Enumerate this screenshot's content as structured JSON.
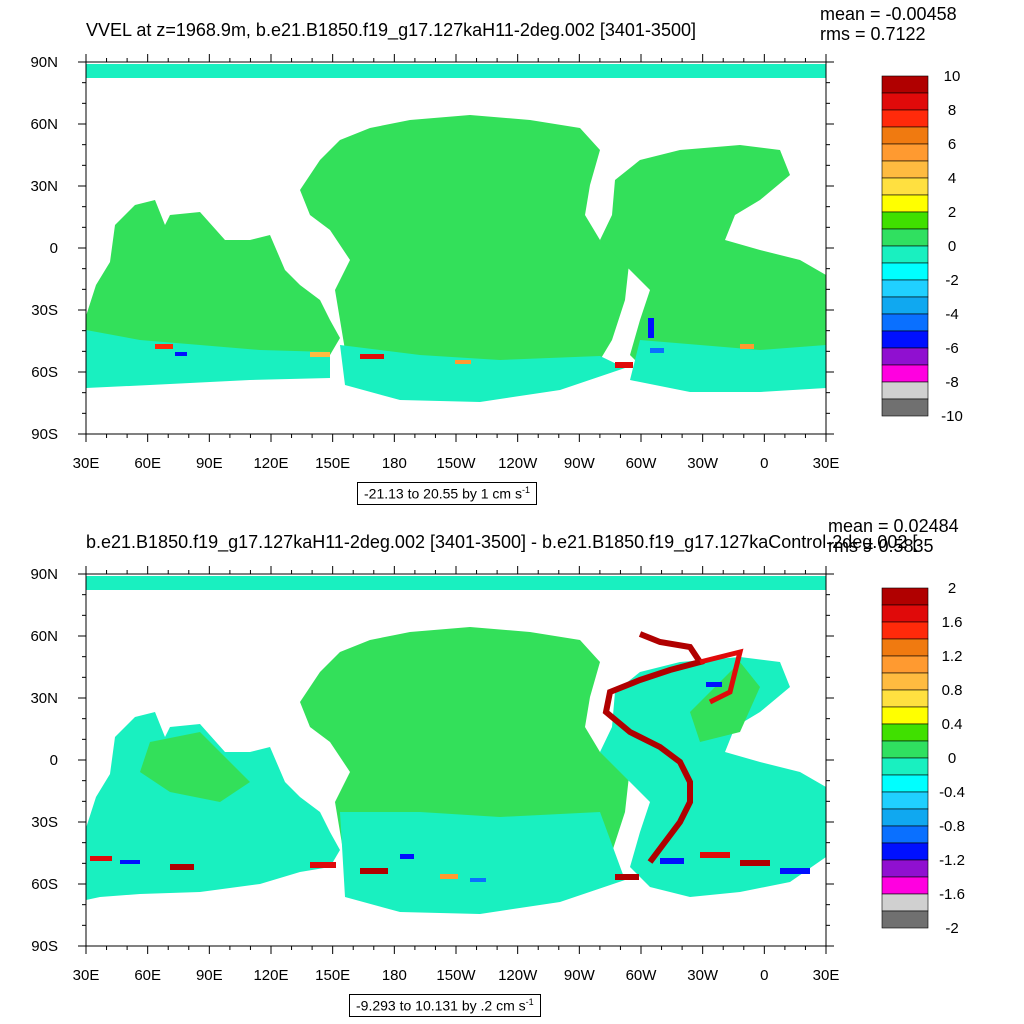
{
  "colors": {
    "ocean_main": "#33e05a",
    "ocean_cyan": "#19f0c0",
    "land": "#ffffff",
    "frame": "#000000"
  },
  "chart_data": [
    {
      "type": "heatmap",
      "title": "VVEL at z=1968.9m, b.e21.B1850.f19_g17.127kaH11-2deg.002 [3401-3500]",
      "stats": {
        "mean": "mean = -0.00458",
        "rms": "rms = 0.7122"
      },
      "x_ticks": [
        "30E",
        "60E",
        "90E",
        "120E",
        "150E",
        "180",
        "150W",
        "120W",
        "90W",
        "60W",
        "30W",
        "0",
        "30E"
      ],
      "y_ticks": [
        "90N",
        "60N",
        "30N",
        "0",
        "30S",
        "60S",
        "90S"
      ],
      "xlim": [
        30,
        390
      ],
      "ylim": [
        -90,
        90
      ],
      "footnote": {
        "text": "-21.13 to 20.55 by 1 cm s",
        "sup": "-1"
      },
      "colorbar": {
        "labels": [
          "10",
          "8",
          "6",
          "4",
          "2",
          "0",
          "-2",
          "-4",
          "-6",
          "-8",
          "-10"
        ],
        "colors": [
          "#b00000",
          "#e00a0a",
          "#ff2a0a",
          "#f07a10",
          "#ff9a30",
          "#ffbb40",
          "#ffe040",
          "#ffff00",
          "#40e000",
          "#30e060",
          "#19f0c0",
          "#00ffff",
          "#20d0ff",
          "#10a8f0",
          "#0a70ff",
          "#0010ff",
          "#9010d0",
          "#ff00e0",
          "#d0d0d0",
          "#707070"
        ]
      }
    },
    {
      "type": "heatmap",
      "title": "b.e21.B1850.f19_g17.127kaH11-2deg.002 [3401-3500] - b.e21.B1850.f19_g17.127kaControl-2deg.002 [",
      "stats": {
        "mean": "mean = 0.02484",
        "rms": "rms = 0.5835"
      },
      "x_ticks": [
        "30E",
        "60E",
        "90E",
        "120E",
        "150E",
        "180",
        "150W",
        "120W",
        "90W",
        "60W",
        "30W",
        "0",
        "30E"
      ],
      "y_ticks": [
        "90N",
        "60N",
        "30N",
        "0",
        "30S",
        "60S",
        "90S"
      ],
      "xlim": [
        30,
        390
      ],
      "ylim": [
        -90,
        90
      ],
      "footnote": {
        "text": "-9.293 to 10.131 by .2 cm s",
        "sup": "-1"
      },
      "colorbar": {
        "labels": [
          "2",
          "1.6",
          "1.2",
          "0.8",
          "0.4",
          "0",
          "-0.4",
          "-0.8",
          "-1.2",
          "-1.6",
          "-2"
        ],
        "colors": [
          "#b00000",
          "#e00a0a",
          "#ff2a0a",
          "#f07a10",
          "#ff9a30",
          "#ffbb40",
          "#ffe040",
          "#ffff00",
          "#40e000",
          "#30e060",
          "#19f0c0",
          "#00ffff",
          "#20d0ff",
          "#10a8f0",
          "#0a70ff",
          "#0010ff",
          "#9010d0",
          "#ff00e0",
          "#d0d0d0",
          "#707070"
        ]
      }
    }
  ]
}
